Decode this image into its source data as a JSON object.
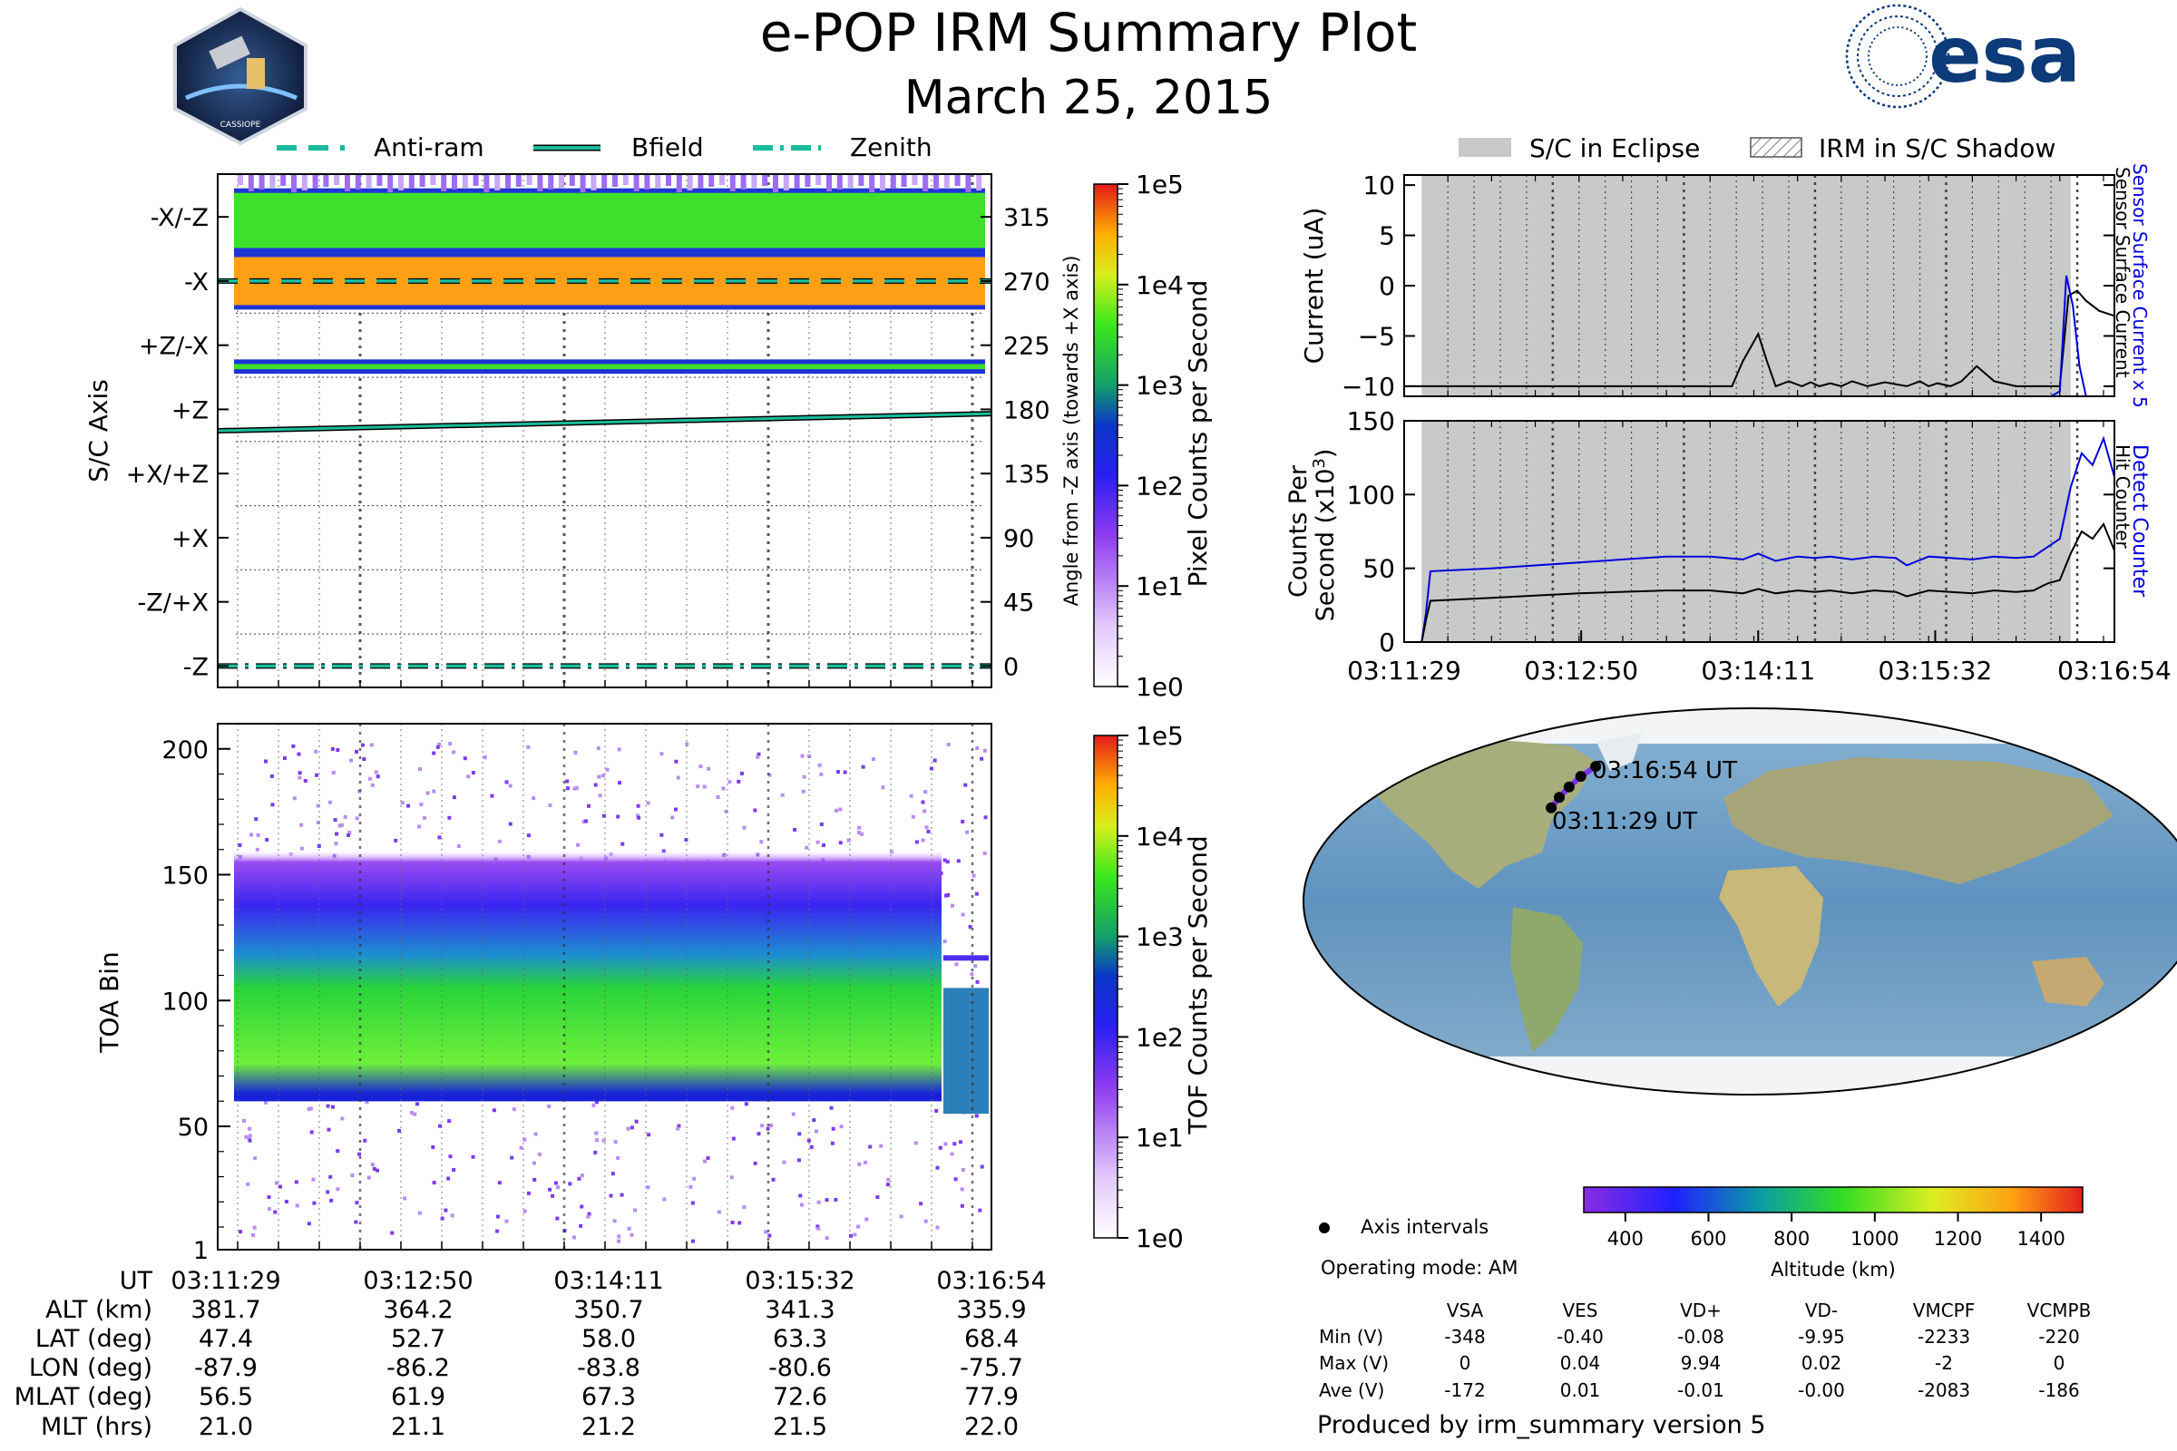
{
  "header": {
    "title": "e-POP IRM Summary Plot",
    "date": "March 25, 2015",
    "mission_logo_text": "CASSIOPE",
    "agency_logo_text": "esa",
    "agency_color": "#0d3a78"
  },
  "legend_left": [
    "Anti-ram",
    "Bfield",
    "Zenith"
  ],
  "legend_right": [
    "S/C in Eclipse",
    "IRM in S/C Shadow"
  ],
  "colors": {
    "trace_teal": "#1abc9c",
    "eclipse_gray": "#c8c9c9",
    "blue_series": "#0000dd",
    "black_series": "#000000"
  },
  "chart_data": [
    {
      "id": "sc-axis-spectrogram",
      "type": "heatmap",
      "ylabel": "S/C Axis",
      "ylabel_right": "Angle from -Z axis (towards +X axis)",
      "y_ticks_left": [
        "-X/-Z",
        "-X",
        "+Z/-X",
        "+Z",
        "+X/+Z",
        "+X",
        "-Z/+X",
        "-Z"
      ],
      "y_ticks_right": [
        "315",
        "270",
        "225",
        "180",
        "135",
        "90",
        "45",
        "0"
      ],
      "y_tick_values": [
        315,
        270,
        225,
        180,
        135,
        90,
        45,
        0
      ],
      "ylim": [
        -15,
        345
      ],
      "bands": [
        {
          "from": 290,
          "to": 335,
          "level": "green"
        },
        {
          "from": 250,
          "to": 290,
          "level": "orange"
        },
        {
          "from": 205,
          "to": 215,
          "level": "green"
        }
      ],
      "lines": [
        {
          "name": "Anti-ram",
          "style": "dashed",
          "angle": 270
        },
        {
          "name": "Bfield",
          "style": "solid",
          "angle_start": 165,
          "angle_end": 177
        },
        {
          "name": "Zenith",
          "style": "dashdot",
          "angle": 0
        }
      ],
      "colorbar": {
        "label": "Pixel Counts per Second",
        "scale": "log",
        "ticks": [
          "1e0",
          "1e1",
          "1e2",
          "1e3",
          "1e4",
          "1e5"
        ]
      }
    },
    {
      "id": "toa-spectrogram",
      "type": "heatmap",
      "ylabel": "TOA Bin",
      "y_ticks": [
        "1",
        "50",
        "100",
        "150",
        "200"
      ],
      "y_tick_values": [
        1,
        50,
        100,
        150,
        200
      ],
      "ylim": [
        1,
        210
      ],
      "core_band": {
        "from": 60,
        "to": 125,
        "level": "green"
      },
      "halo_band": {
        "from": 125,
        "to": 160,
        "level": "blue"
      },
      "colorbar": {
        "label": "TOF Counts per Second",
        "scale": "log",
        "ticks": [
          "1e0",
          "1e1",
          "1e2",
          "1e3",
          "1e4",
          "1e5"
        ]
      }
    },
    {
      "id": "current-plot",
      "type": "line",
      "ylabel": "Current (uA)",
      "y_ticks": [
        "10",
        "5",
        "0",
        "−5",
        "−10"
      ],
      "y_tick_values": [
        10,
        5,
        0,
        -5,
        -10
      ],
      "ylim": [
        -11,
        11
      ],
      "xlim": [
        0,
        325
      ],
      "right_labels": {
        "blue": "Sensor Surface Current x 5",
        "black": "Sensor Surface Current"
      },
      "series": [
        {
          "name": "Sensor Surface Current",
          "color": "#000000",
          "x": [
            0,
            12,
            30,
            60,
            90,
            120,
            140,
            150,
            155,
            162,
            166,
            170,
            176,
            182,
            186,
            190,
            195,
            200,
            205,
            212,
            220,
            230,
            236,
            240,
            244,
            250,
            255,
            262,
            270,
            280,
            286,
            292,
            296,
            300,
            304,
            308,
            312,
            318,
            325
          ],
          "values": [
            -10,
            -10,
            -10,
            -10,
            -10,
            -10,
            -10,
            -10,
            -7.5,
            -4.8,
            -7.5,
            -10,
            -9.5,
            -10,
            -9.6,
            -10,
            -9.7,
            -10,
            -9.5,
            -10,
            -9.6,
            -10,
            -9.5,
            -10,
            -9.7,
            -10,
            -9.5,
            -8.0,
            -9.5,
            -10,
            -10,
            -10,
            -10,
            -10,
            -1,
            -0.5,
            -1.5,
            -2.5,
            -3
          ]
        },
        {
          "name": "Sensor Surface Current x 5",
          "color": "#0000dd",
          "x": [
            0,
            296,
            300,
            303,
            306,
            309,
            312
          ],
          "values": [
            -11,
            -11,
            -10.5,
            1,
            -2,
            -8,
            -11
          ]
        }
      ]
    },
    {
      "id": "counter-plot",
      "type": "line",
      "ylabel": "Counts Per Second (x10^3)",
      "y_ticks": [
        "0",
        "50",
        "100",
        "150"
      ],
      "y_tick_values": [
        0,
        50,
        100,
        150
      ],
      "ylim": [
        0,
        150
      ],
      "xlim": [
        0,
        325
      ],
      "x_ticks": [
        "03:11:29",
        "03:12:50",
        "03:14:11",
        "03:15:32",
        "03:16:54"
      ],
      "x_tick_values": [
        0,
        81,
        162,
        243,
        325
      ],
      "right_labels": {
        "blue": "Detect Counter",
        "black": "Hit Counter"
      },
      "series": [
        {
          "name": "Detect Counter",
          "color": "#0000dd",
          "x": [
            0,
            8,
            10,
            12,
            40,
            80,
            120,
            140,
            155,
            162,
            170,
            180,
            188,
            195,
            205,
            215,
            225,
            230,
            240,
            250,
            260,
            270,
            280,
            288,
            292,
            295,
            300,
            305,
            310,
            315,
            320,
            325
          ],
          "values": [
            0,
            0,
            20,
            48,
            50,
            54,
            58,
            58,
            56,
            60,
            55,
            58,
            57,
            58,
            56,
            58,
            57,
            52,
            58,
            57,
            56,
            58,
            57,
            58,
            62,
            65,
            70,
            105,
            128,
            120,
            138,
            112
          ]
        },
        {
          "name": "Hit Counter",
          "color": "#000000",
          "x": [
            0,
            8,
            10,
            12,
            40,
            80,
            120,
            140,
            155,
            162,
            170,
            180,
            188,
            195,
            205,
            215,
            225,
            230,
            240,
            250,
            260,
            270,
            280,
            288,
            292,
            295,
            300,
            305,
            310,
            315,
            320,
            325
          ],
          "values": [
            0,
            0,
            15,
            28,
            30,
            33,
            35,
            35,
            33,
            36,
            33,
            35,
            34,
            35,
            33,
            35,
            34,
            31,
            35,
            34,
            33,
            35,
            34,
            35,
            38,
            40,
            42,
            60,
            75,
            70,
            80,
            62
          ]
        }
      ]
    }
  ],
  "time_table": {
    "row_labels": [
      "UT",
      "ALT (km)",
      "LAT (deg)",
      "LON (deg)",
      "MLAT (deg)",
      "MLT (hrs)"
    ],
    "columns": [
      [
        "03:11:29",
        "381.7",
        "47.4",
        "-87.9",
        "56.5",
        "21.0"
      ],
      [
        "03:12:50",
        "364.2",
        "52.7",
        "-86.2",
        "61.9",
        "21.1"
      ],
      [
        "03:14:11",
        "350.7",
        "58.0",
        "-83.8",
        "67.3",
        "21.2"
      ],
      [
        "03:15:32",
        "341.3",
        "63.3",
        "-80.6",
        "72.6",
        "21.5"
      ],
      [
        "03:16:54",
        "335.9",
        "68.4",
        "-75.7",
        "77.9",
        "22.0"
      ]
    ]
  },
  "map": {
    "start_label": "03:11:29 UT",
    "end_label": "03:16:54 UT",
    "track_points": [
      {
        "lat": 47.4,
        "lon": -87.9
      },
      {
        "lat": 52.7,
        "lon": -86.2
      },
      {
        "lat": 58.0,
        "lon": -83.8
      },
      {
        "lat": 63.3,
        "lon": -80.6
      },
      {
        "lat": 68.4,
        "lon": -75.7
      }
    ]
  },
  "altitude_colorbar": {
    "label": "Altitude (km)",
    "ticks": [
      "400",
      "600",
      "800",
      "1000",
      "1200",
      "1400"
    ],
    "tick_values": [
      400,
      600,
      800,
      1000,
      1200,
      1400
    ],
    "range": [
      300,
      1500
    ]
  },
  "info": {
    "axis_intervals": "Axis intervals",
    "operating_mode": "Operating mode: AM"
  },
  "voltage_table": {
    "headers": [
      "VSA",
      "VES",
      "VD+",
      "VD-",
      "VMCPF",
      "VCMPB"
    ],
    "rows": [
      {
        "label": "Min (V)",
        "values": [
          "-348",
          "-0.40",
          "-0.08",
          "-9.95",
          "-2233",
          "-220"
        ]
      },
      {
        "label": "Max (V)",
        "values": [
          "0",
          "0.04",
          "9.94",
          "0.02",
          "-2",
          "0"
        ]
      },
      {
        "label": "Ave (V)",
        "values": [
          "-172",
          "0.01",
          "-0.01",
          "-0.00",
          "-2083",
          "-186"
        ]
      }
    ]
  },
  "footer": {
    "produced_by": "Produced by irm_summary version 5"
  }
}
